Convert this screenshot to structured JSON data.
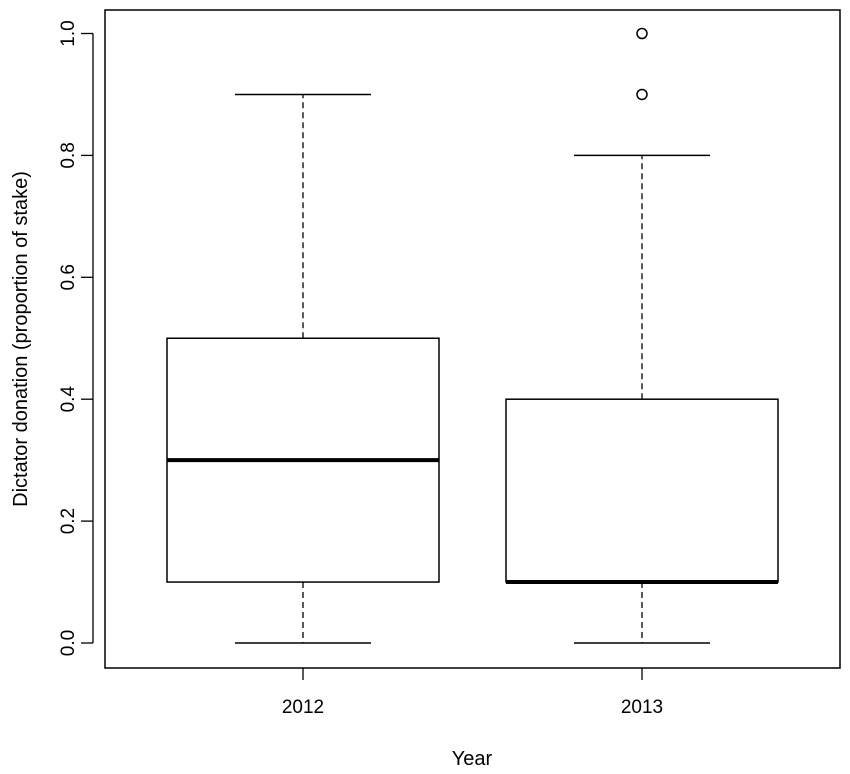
{
  "chart_data": {
    "type": "boxplot",
    "title": "",
    "xlabel": "Year",
    "ylabel": "Dictator donation (proportion of stake)",
    "ylim": [
      0.0,
      1.0
    ],
    "yticks": [
      "0.0",
      "0.2",
      "0.4",
      "0.6",
      "0.8",
      "1.0"
    ],
    "ytick_values": [
      0.0,
      0.2,
      0.4,
      0.6,
      0.8,
      1.0
    ],
    "grid": false,
    "categories": [
      "2012",
      "2013"
    ],
    "boxes": [
      {
        "category": "2012",
        "whisker_low": 0.0,
        "q1": 0.1,
        "median": 0.3,
        "q3": 0.5,
        "whisker_high": 0.9,
        "outliers": []
      },
      {
        "category": "2013",
        "whisker_low": 0.0,
        "q1": 0.1,
        "median": 0.1,
        "q3": 0.4,
        "whisker_high": 0.8,
        "outliers": [
          0.9,
          1.0
        ]
      }
    ]
  }
}
